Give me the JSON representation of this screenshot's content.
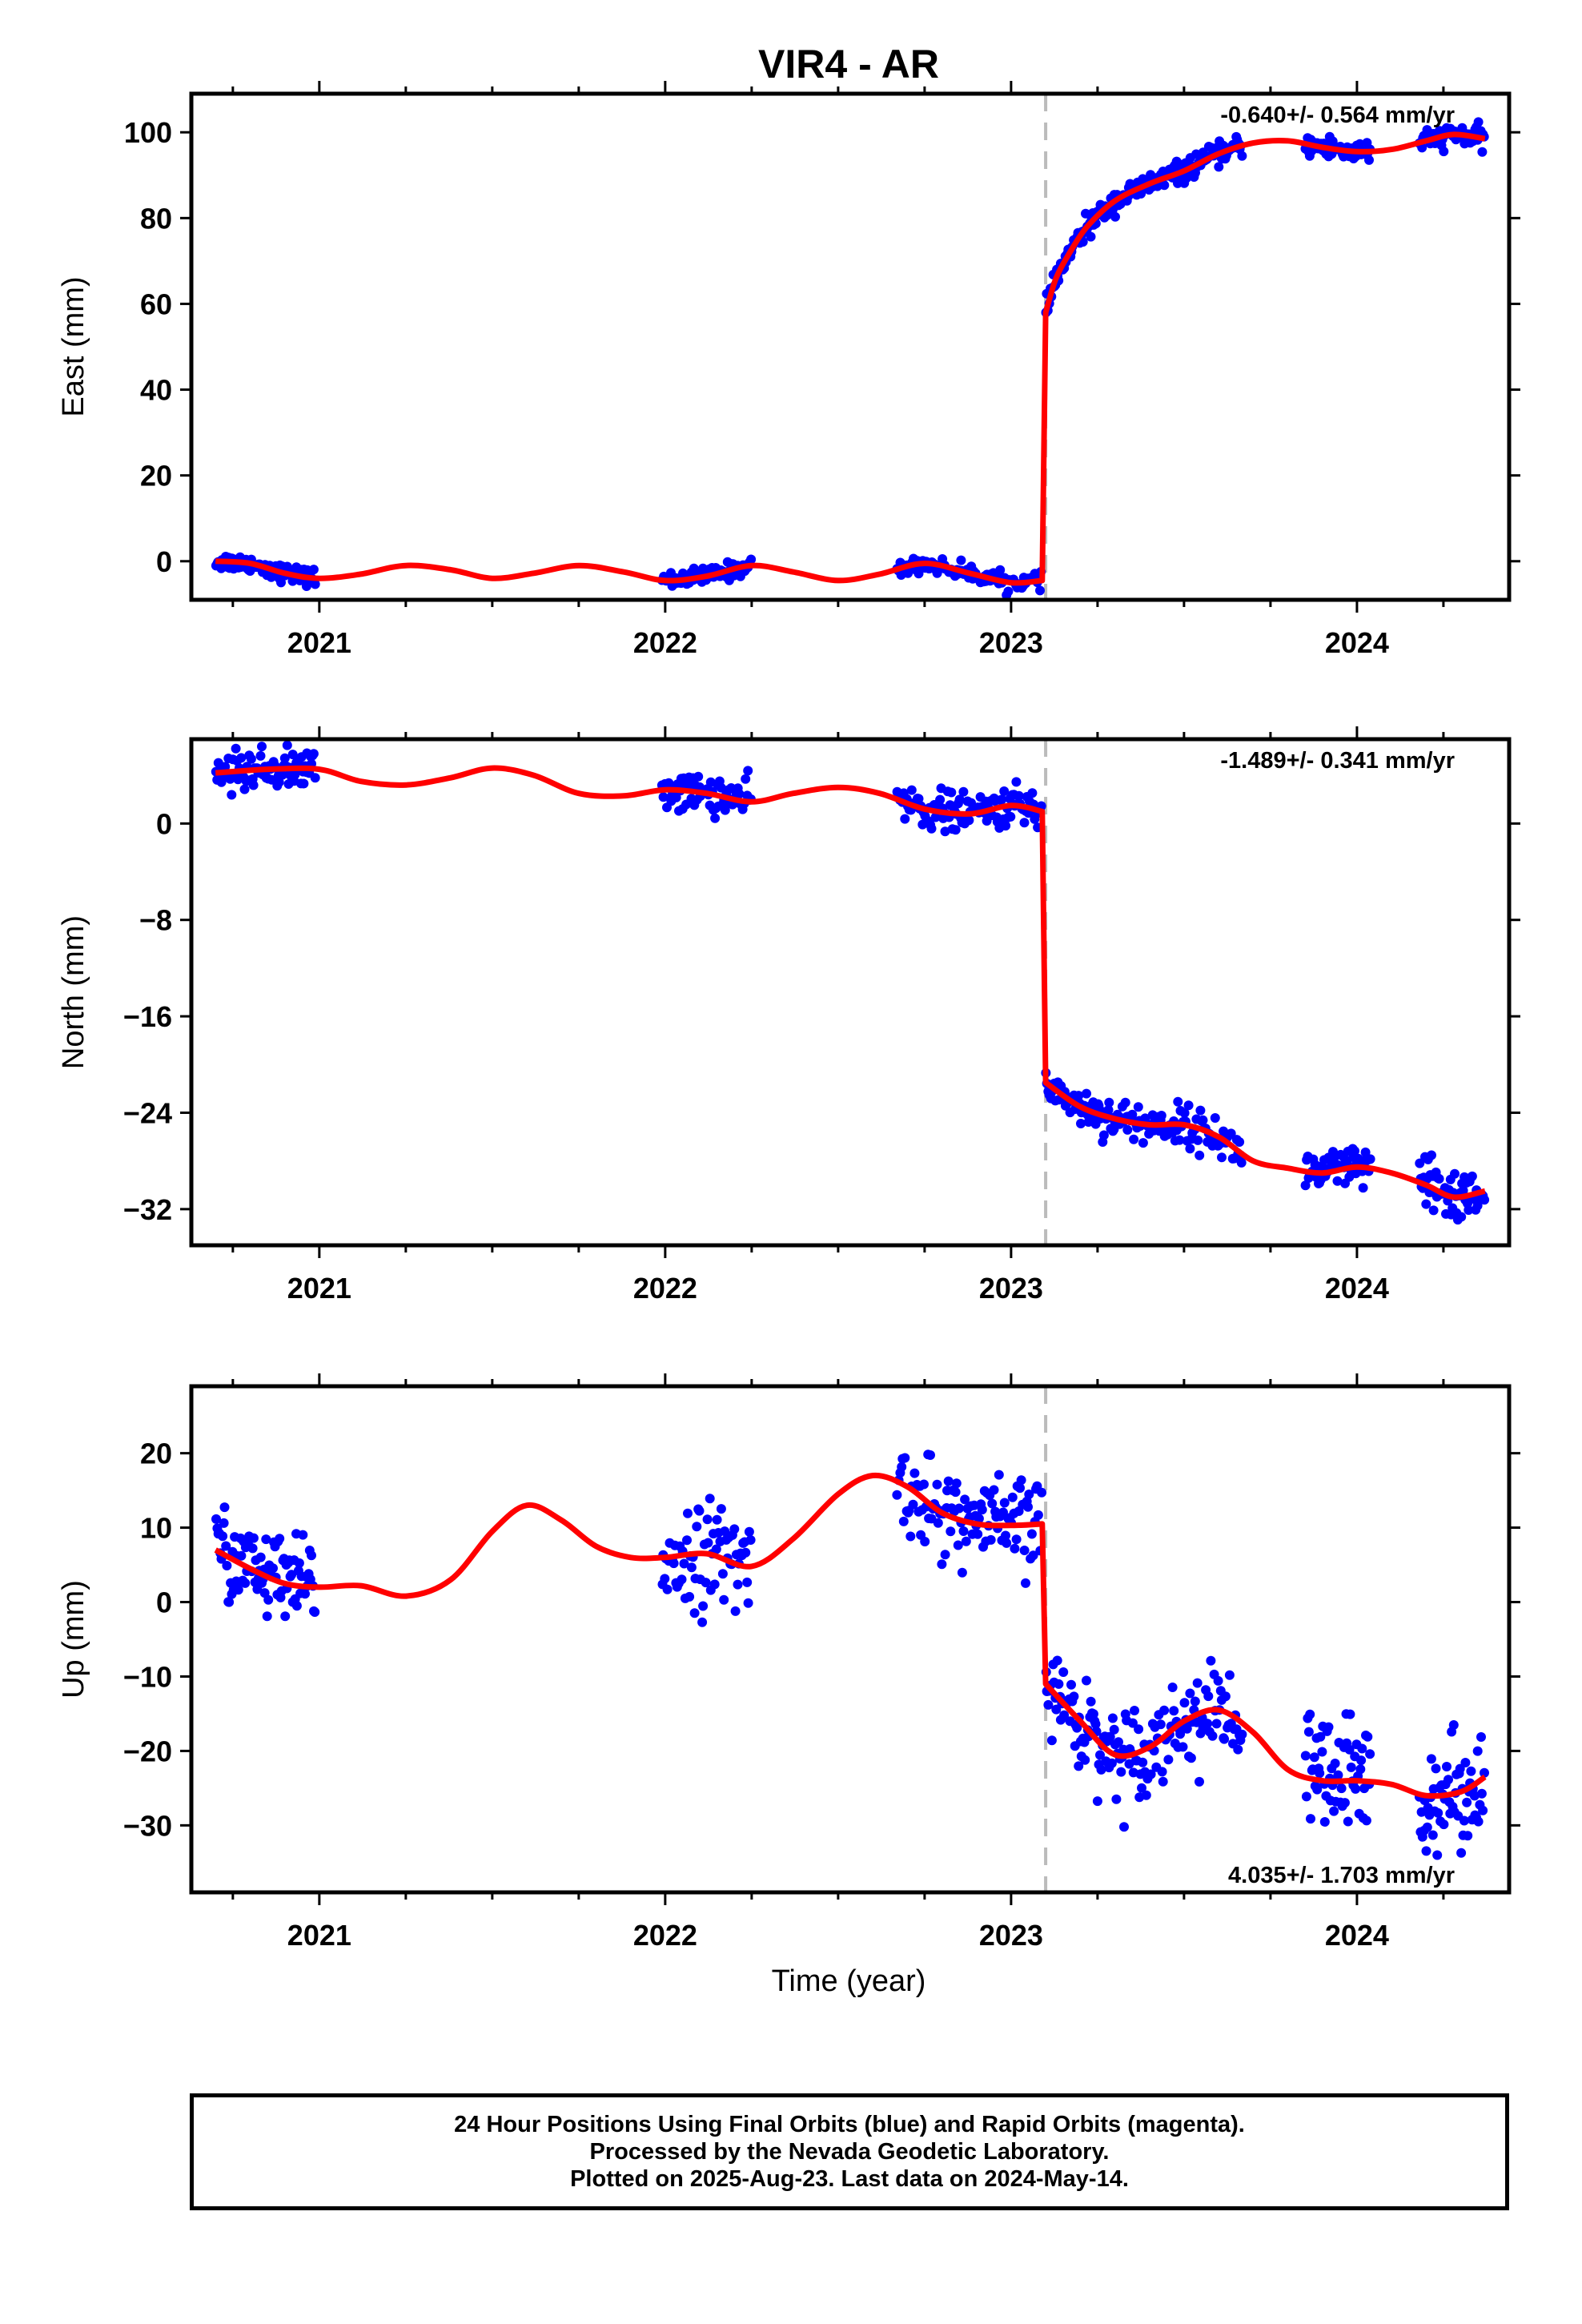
{
  "title": "VIR4 - AR",
  "xlabel": "Time (year)",
  "footer": {
    "line1": "24 Hour Positions Using Final Orbits (blue) and Rapid Orbits (magenta).",
    "line2": "Processed by the Nevada Geodetic Laboratory.",
    "line3": "Plotted on 2025-Aug-23. Last data on 2024-May-14."
  },
  "colors": {
    "points": "#0000ff",
    "fit": "#ff0000",
    "offset_line": "#bbbbbb",
    "axes": "#000000"
  },
  "chart_data": [
    {
      "type": "scatter",
      "component": "East",
      "ylabel": "East (mm)",
      "rate_text": "-0.640+/- 0.564 mm/yr",
      "rate_position": "top-right",
      "xlim": [
        2020.63,
        2024.44
      ],
      "ylim": [
        -9,
        109
      ],
      "yticks": [
        0,
        20,
        40,
        60,
        80,
        100
      ],
      "xticks": [
        2021,
        2022,
        2023,
        2024
      ],
      "offset_epoch": 2023.1,
      "data_segments": [
        {
          "start": 2020.7,
          "end": 2020.99,
          "n": 80,
          "spread": 1.0
        },
        {
          "start": 2021.99,
          "end": 2022.25,
          "n": 70,
          "spread": 1.0
        },
        {
          "start": 2022.67,
          "end": 2023.09,
          "n": 110,
          "spread": 0.9
        },
        {
          "start": 2023.1,
          "end": 2023.5,
          "n": 130,
          "spread": 1.3
        },
        {
          "start": 2023.5,
          "end": 2023.67,
          "n": 50,
          "spread": 1.2
        },
        {
          "start": 2023.85,
          "end": 2024.04,
          "n": 60,
          "spread": 1.4
        },
        {
          "start": 2024.18,
          "end": 2024.37,
          "n": 60,
          "spread": 1.2
        }
      ],
      "fit_points": [
        [
          2020.7,
          0.0
        ],
        [
          2020.8,
          -0.5
        ],
        [
          2020.9,
          -2.8
        ],
        [
          2021.0,
          -4.0
        ],
        [
          2021.12,
          -3.0
        ],
        [
          2021.25,
          -1.0
        ],
        [
          2021.38,
          -2.0
        ],
        [
          2021.5,
          -4.0
        ],
        [
          2021.62,
          -2.8
        ],
        [
          2021.75,
          -1.0
        ],
        [
          2021.88,
          -2.5
        ],
        [
          2022.0,
          -4.5
        ],
        [
          2022.12,
          -3.5
        ],
        [
          2022.25,
          -1.0
        ],
        [
          2022.37,
          -2.5
        ],
        [
          2022.5,
          -4.5
        ],
        [
          2022.62,
          -3.0
        ],
        [
          2022.75,
          -0.5
        ],
        [
          2022.88,
          -2.8
        ],
        [
          2023.0,
          -5.0
        ],
        [
          2023.09,
          -4.5
        ],
        [
          2023.1,
          58.0
        ],
        [
          2023.13,
          66.0
        ],
        [
          2023.17,
          72.0
        ],
        [
          2023.22,
          78.0
        ],
        [
          2023.3,
          84.0
        ],
        [
          2023.4,
          88.0
        ],
        [
          2023.5,
          91.0
        ],
        [
          2023.6,
          95.0
        ],
        [
          2023.7,
          97.5
        ],
        [
          2023.8,
          98.0
        ],
        [
          2023.9,
          96.5
        ],
        [
          2024.0,
          95.5
        ],
        [
          2024.1,
          96.0
        ],
        [
          2024.2,
          98.0
        ],
        [
          2024.28,
          99.5
        ],
        [
          2024.37,
          98.5
        ]
      ]
    },
    {
      "type": "scatter",
      "component": "North",
      "ylabel": "North (mm)",
      "rate_text": "-1.489+/- 0.341 mm/yr",
      "rate_position": "top-right",
      "xlim": [
        2020.63,
        2024.44
      ],
      "ylim": [
        -35,
        7
      ],
      "yticks": [
        0,
        -8,
        -16,
        -24,
        -32
      ],
      "xticks": [
        2021,
        2022,
        2023,
        2024
      ],
      "offset_epoch": 2023.1,
      "data_segments": [
        {
          "start": 2020.7,
          "end": 2020.99,
          "n": 90,
          "spread": 0.8
        },
        {
          "start": 2021.99,
          "end": 2022.25,
          "n": 70,
          "spread": 0.8
        },
        {
          "start": 2022.67,
          "end": 2023.09,
          "n": 110,
          "spread": 0.8
        },
        {
          "start": 2023.1,
          "end": 2023.4,
          "n": 90,
          "spread": 0.8
        },
        {
          "start": 2023.4,
          "end": 2023.67,
          "n": 70,
          "spread": 0.8
        },
        {
          "start": 2023.85,
          "end": 2024.04,
          "n": 60,
          "spread": 0.9
        },
        {
          "start": 2024.18,
          "end": 2024.37,
          "n": 60,
          "spread": 1.2
        }
      ],
      "fit_points": [
        [
          2020.7,
          4.2
        ],
        [
          2020.85,
          4.5
        ],
        [
          2021.0,
          4.5
        ],
        [
          2021.12,
          3.5
        ],
        [
          2021.25,
          3.2
        ],
        [
          2021.38,
          3.8
        ],
        [
          2021.5,
          4.6
        ],
        [
          2021.62,
          4.0
        ],
        [
          2021.75,
          2.5
        ],
        [
          2021.88,
          2.3
        ],
        [
          2022.0,
          2.8
        ],
        [
          2022.12,
          2.5
        ],
        [
          2022.25,
          1.8
        ],
        [
          2022.37,
          2.5
        ],
        [
          2022.5,
          3.0
        ],
        [
          2022.62,
          2.5
        ],
        [
          2022.75,
          1.2
        ],
        [
          2022.88,
          0.8
        ],
        [
          2023.0,
          1.5
        ],
        [
          2023.09,
          1.0
        ],
        [
          2023.1,
          -21.5
        ],
        [
          2023.2,
          -23.5
        ],
        [
          2023.3,
          -24.5
        ],
        [
          2023.4,
          -25.0
        ],
        [
          2023.5,
          -25.0
        ],
        [
          2023.6,
          -26.0
        ],
        [
          2023.7,
          -28.0
        ],
        [
          2023.8,
          -28.6
        ],
        [
          2023.9,
          -29.0
        ],
        [
          2024.0,
          -28.5
        ],
        [
          2024.1,
          -29.0
        ],
        [
          2024.2,
          -30.0
        ],
        [
          2024.28,
          -31.0
        ],
        [
          2024.37,
          -30.5
        ]
      ]
    },
    {
      "type": "scatter",
      "component": "Up",
      "ylabel": "Up (mm)",
      "rate_text": "4.035+/- 1.703 mm/yr",
      "rate_position": "bottom-right",
      "xlim": [
        2020.63,
        2024.44
      ],
      "ylim": [
        -39,
        29
      ],
      "yticks": [
        20,
        10,
        0,
        -10,
        -20,
        -30
      ],
      "xticks": [
        2021,
        2022,
        2023,
        2024
      ],
      "offset_epoch": 2023.1,
      "data_segments": [
        {
          "start": 2020.7,
          "end": 2020.99,
          "n": 90,
          "spread": 3.0
        },
        {
          "start": 2021.99,
          "end": 2022.25,
          "n": 70,
          "spread": 3.5
        },
        {
          "start": 2022.67,
          "end": 2023.09,
          "n": 110,
          "spread": 3.0
        },
        {
          "start": 2023.1,
          "end": 2023.4,
          "n": 90,
          "spread": 3.0
        },
        {
          "start": 2023.4,
          "end": 2023.67,
          "n": 70,
          "spread": 3.0
        },
        {
          "start": 2023.85,
          "end": 2024.04,
          "n": 60,
          "spread": 4.5
        },
        {
          "start": 2024.18,
          "end": 2024.37,
          "n": 60,
          "spread": 3.5
        }
      ],
      "fit_points": [
        [
          2020.7,
          7.0
        ],
        [
          2020.8,
          4.5
        ],
        [
          2020.9,
          2.5
        ],
        [
          2021.0,
          2.0
        ],
        [
          2021.12,
          2.2
        ],
        [
          2021.25,
          0.8
        ],
        [
          2021.38,
          3.0
        ],
        [
          2021.5,
          9.5
        ],
        [
          2021.6,
          13.0
        ],
        [
          2021.7,
          11.0
        ],
        [
          2021.8,
          7.5
        ],
        [
          2021.9,
          6.0
        ],
        [
          2022.0,
          6.0
        ],
        [
          2022.12,
          6.5
        ],
        [
          2022.25,
          4.8
        ],
        [
          2022.37,
          8.5
        ],
        [
          2022.5,
          14.5
        ],
        [
          2022.6,
          17.0
        ],
        [
          2022.7,
          15.5
        ],
        [
          2022.8,
          12.0
        ],
        [
          2022.9,
          10.5
        ],
        [
          2023.0,
          10.3
        ],
        [
          2023.09,
          10.5
        ],
        [
          2023.1,
          -11.0
        ],
        [
          2023.2,
          -16.0
        ],
        [
          2023.3,
          -20.5
        ],
        [
          2023.4,
          -19.5
        ],
        [
          2023.5,
          -16.0
        ],
        [
          2023.6,
          -14.5
        ],
        [
          2023.7,
          -17.5
        ],
        [
          2023.8,
          -22.5
        ],
        [
          2023.9,
          -24.0
        ],
        [
          2024.0,
          -24.0
        ],
        [
          2024.1,
          -24.5
        ],
        [
          2024.2,
          -26.0
        ],
        [
          2024.3,
          -25.5
        ],
        [
          2024.37,
          -23.5
        ]
      ]
    }
  ]
}
